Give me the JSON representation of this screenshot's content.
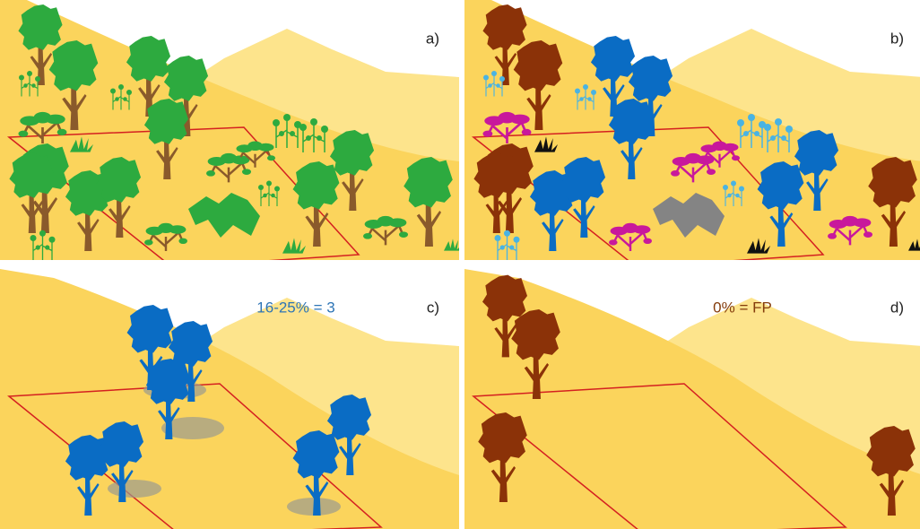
{
  "panels": [
    {
      "label": "a)"
    },
    {
      "label": "b)"
    },
    {
      "label": "c)",
      "annotation": "16-25% = 3"
    },
    {
      "label": "d)",
      "annotation": "0% = FP"
    }
  ]
}
